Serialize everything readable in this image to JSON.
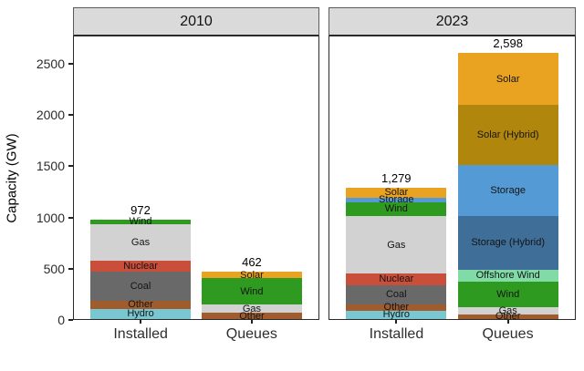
{
  "chart_data": {
    "type": "bar",
    "stacked": true,
    "ylabel": "Capacity (GW)",
    "ylim": [
      0,
      2765
    ],
    "y_ticks": [
      0,
      500,
      1000,
      1500,
      2000,
      2500
    ],
    "x_categories": [
      "Installed",
      "Queues"
    ],
    "grid": false,
    "legend": "none (segments labeled inline)",
    "panels": [
      {
        "title": "2010",
        "bars": [
          {
            "category": "Installed",
            "total": 972,
            "total_label": "972",
            "segments_bottom_to_top": [
              {
                "name": "Hydro",
                "value": 100
              },
              {
                "name": "Other",
                "value": 78
              },
              {
                "name": "Coal",
                "value": 285
              },
              {
                "name": "Nuclear",
                "value": 107
              },
              {
                "name": "Gas",
                "value": 355
              },
              {
                "name": "Wind",
                "value": 47
              }
            ]
          },
          {
            "category": "Queues",
            "total": 462,
            "total_label": "462",
            "segments_bottom_to_top": [
              {
                "name": "Other",
                "value": 59
              },
              {
                "name": "Gas",
                "value": 85
              },
              {
                "name": "Wind",
                "value": 252
              },
              {
                "name": "Solar",
                "value": 66
              }
            ]
          }
        ]
      },
      {
        "title": "2023",
        "bars": [
          {
            "category": "Installed",
            "total": 1279,
            "total_label": "1,279",
            "segments_bottom_to_top": [
              {
                "name": "Hydro",
                "value": 80
              },
              {
                "name": "Other",
                "value": 66
              },
              {
                "name": "Coal",
                "value": 187
              },
              {
                "name": "Nuclear",
                "value": 112
              },
              {
                "name": "Gas",
                "value": 557
              },
              {
                "name": "Wind",
                "value": 139
              },
              {
                "name": "Storage",
                "value": 45
              },
              {
                "name": "Solar",
                "value": 93
              }
            ]
          },
          {
            "category": "Queues",
            "total": 2598,
            "total_label": "2,598",
            "segments_bottom_to_top": [
              {
                "name": "Other",
                "value": 44
              },
              {
                "name": "Gas",
                "value": 71
              },
              {
                "name": "Wind",
                "value": 252
              },
              {
                "name": "Offshore Wind",
                "value": 112
              },
              {
                "name": "Storage (Hybrid)",
                "value": 528
              },
              {
                "name": "Storage",
                "value": 494
              },
              {
                "name": "Solar (Hybrid)",
                "value": 584
              },
              {
                "name": "Solar",
                "value": 513
              }
            ]
          }
        ]
      }
    ]
  },
  "colors": {
    "Hydro": "#79C8D1",
    "Other": "#A15C2E",
    "Coal": "#696969",
    "Nuclear": "#C94F3B",
    "Gas": "#D2D2D2",
    "Wind": "#2E9B20",
    "Offshore Wind": "#81DBA7",
    "Storage (Hybrid)": "#3F6E98",
    "Storage": "#549BD5",
    "Solar (Hybrid)": "#B0860D",
    "Solar": "#EAA221",
    "strip_bg": "#DADADA",
    "panel_border": "#2A2A2A"
  }
}
